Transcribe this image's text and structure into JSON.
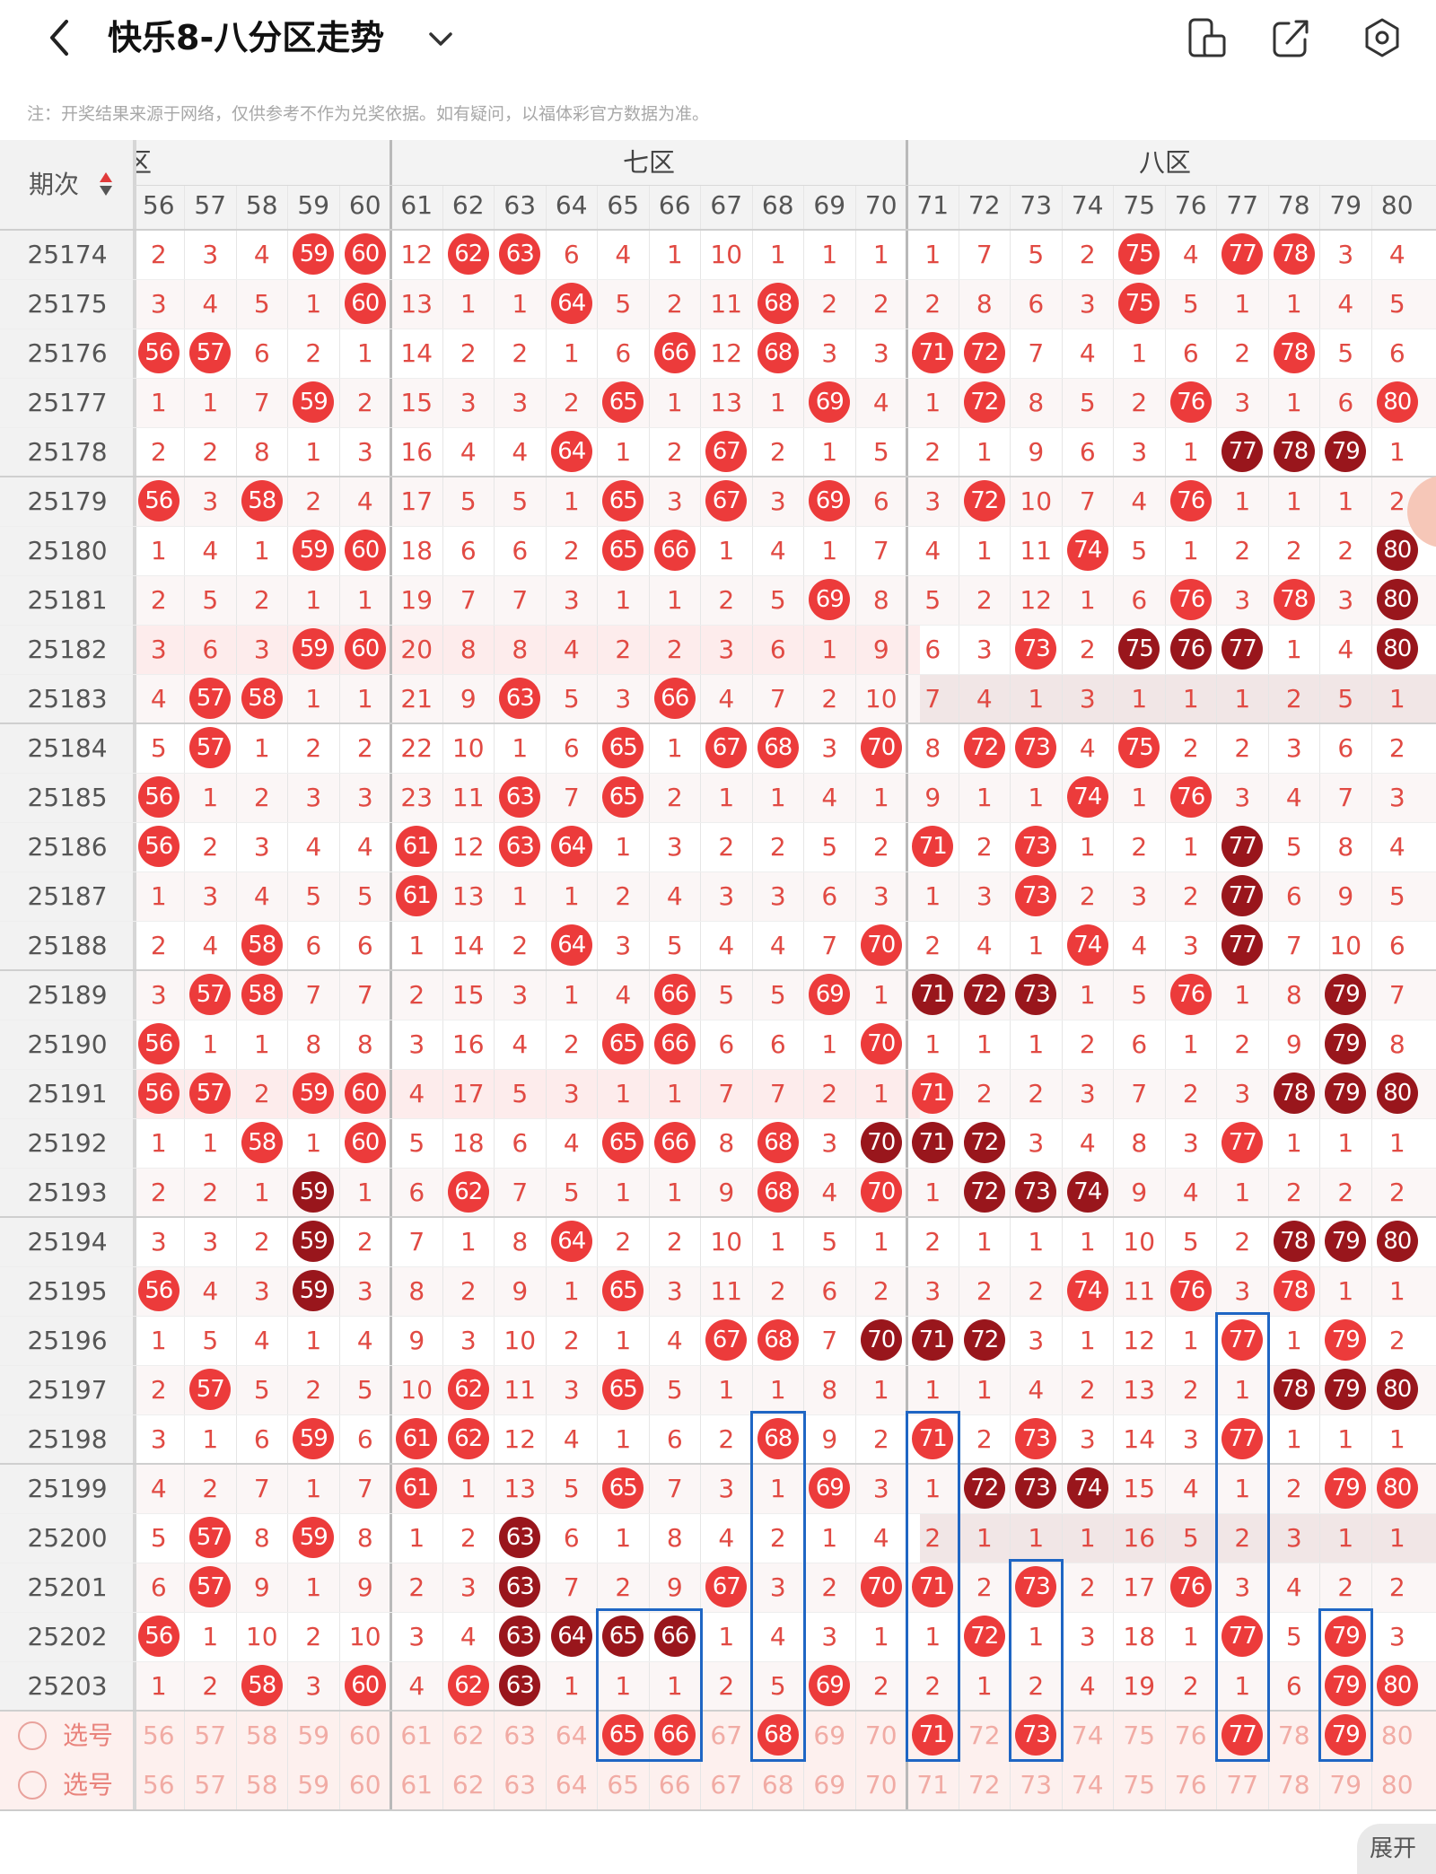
{
  "header": {
    "title": "快乐8-八分区走势",
    "back_icon": "chevron-left-icon",
    "dropdown_icon": "chevron-down-icon",
    "actions": [
      "phone-layout-icon",
      "share-icon",
      "settings-icon"
    ]
  },
  "note": "注：开奖结果来源于网络，仅供参考不作为兑奖依据。如有疑问，以福体彩官方数据为准。",
  "table": {
    "period_header": "期次",
    "zones": {
      "six": "六区",
      "seven": "七区",
      "eight": "八区"
    },
    "numbers": [
      56,
      57,
      58,
      59,
      60,
      61,
      62,
      63,
      64,
      65,
      66,
      67,
      68,
      69,
      70,
      71,
      72,
      73,
      74,
      75,
      76,
      77,
      78,
      79,
      80
    ],
    "rows": [
      {
        "period": "25174",
        "cells": [
          2,
          3,
          4,
          "59b",
          "60b",
          12,
          "62b",
          "63b",
          6,
          4,
          1,
          10,
          1,
          1,
          1,
          1,
          7,
          5,
          2,
          "75b",
          4,
          "77b",
          "78b",
          3,
          4
        ]
      },
      {
        "period": "25175",
        "cells": [
          3,
          4,
          5,
          1,
          "60b",
          13,
          1,
          1,
          "64b",
          5,
          2,
          11,
          "68b",
          2,
          2,
          2,
          8,
          6,
          3,
          "75b",
          5,
          1,
          1,
          4,
          5
        ]
      },
      {
        "period": "25176",
        "cells": [
          "56b",
          "57b",
          6,
          2,
          1,
          14,
          2,
          2,
          1,
          6,
          "66b",
          12,
          "68b",
          3,
          3,
          "71b",
          "72b",
          7,
          4,
          1,
          6,
          2,
          "78b",
          5,
          6
        ]
      },
      {
        "period": "25177",
        "cells": [
          1,
          1,
          7,
          "59b",
          2,
          15,
          3,
          3,
          2,
          "65b",
          1,
          13,
          1,
          "69b",
          4,
          1,
          "72b",
          8,
          5,
          2,
          "76b",
          3,
          1,
          6,
          "80b"
        ]
      },
      {
        "period": "25178",
        "cells": [
          2,
          2,
          8,
          1,
          3,
          16,
          4,
          4,
          "64b",
          1,
          2,
          "67b",
          2,
          1,
          5,
          2,
          1,
          9,
          6,
          3,
          1,
          "77d",
          "78d",
          "79d",
          1
        ]
      },
      {
        "period": "25179",
        "cells": [
          "56b",
          3,
          "58b",
          2,
          4,
          17,
          5,
          5,
          1,
          "65b",
          3,
          "67b",
          3,
          "69b",
          6,
          3,
          "72b",
          10,
          7,
          4,
          "76b",
          1,
          1,
          1,
          2
        ]
      },
      {
        "period": "25180",
        "cells": [
          1,
          4,
          1,
          "59b",
          "60b",
          18,
          6,
          6,
          2,
          "65b",
          "66b",
          1,
          4,
          1,
          7,
          4,
          1,
          11,
          "74b",
          5,
          1,
          2,
          2,
          2,
          "80d"
        ]
      },
      {
        "period": "25181",
        "cells": [
          2,
          5,
          2,
          1,
          1,
          19,
          7,
          7,
          3,
          1,
          1,
          2,
          5,
          "69b",
          8,
          5,
          2,
          12,
          1,
          6,
          "76b",
          3,
          "78b",
          3,
          "80d"
        ]
      },
      {
        "period": "25182",
        "cells": [
          3,
          6,
          3,
          "59b",
          "60b",
          20,
          8,
          8,
          4,
          2,
          2,
          3,
          6,
          1,
          9,
          6,
          3,
          "73b",
          2,
          "75d",
          "76d",
          "77d",
          1,
          4,
          "80d"
        ]
      },
      {
        "period": "25183",
        "cells": [
          4,
          "57b",
          "58b",
          1,
          1,
          21,
          9,
          "63b",
          5,
          3,
          "66b",
          4,
          7,
          2,
          10,
          7,
          4,
          1,
          3,
          1,
          1,
          1,
          2,
          5,
          1
        ]
      },
      {
        "period": "25184",
        "cells": [
          5,
          "57b",
          1,
          2,
          2,
          22,
          10,
          1,
          6,
          "65b",
          1,
          "67b",
          "68b",
          3,
          "70b",
          8,
          "72b",
          "73b",
          4,
          "75b",
          2,
          2,
          3,
          6,
          2
        ]
      },
      {
        "period": "25185",
        "cells": [
          "56b",
          1,
          2,
          3,
          3,
          23,
          11,
          "63b",
          7,
          "65b",
          2,
          1,
          1,
          4,
          1,
          9,
          1,
          1,
          "74b",
          1,
          "76b",
          3,
          4,
          7,
          3
        ]
      },
      {
        "period": "25186",
        "cells": [
          "56b",
          2,
          3,
          4,
          4,
          "61b",
          12,
          "63b",
          "64b",
          1,
          3,
          2,
          2,
          5,
          2,
          "71b",
          2,
          "73b",
          1,
          2,
          1,
          "77d",
          5,
          8,
          4
        ]
      },
      {
        "period": "25187",
        "cells": [
          1,
          3,
          4,
          5,
          5,
          "61b",
          13,
          1,
          1,
          2,
          4,
          3,
          3,
          6,
          3,
          1,
          3,
          "73b",
          2,
          3,
          2,
          "77d",
          6,
          9,
          5
        ]
      },
      {
        "period": "25188",
        "cells": [
          2,
          4,
          "58b",
          6,
          6,
          1,
          14,
          2,
          "64b",
          3,
          5,
          4,
          4,
          7,
          "70b",
          2,
          4,
          1,
          "74b",
          4,
          3,
          "77d",
          7,
          10,
          6
        ]
      },
      {
        "period": "25189",
        "cells": [
          3,
          "57b",
          "58b",
          7,
          7,
          2,
          15,
          3,
          1,
          4,
          "66b",
          5,
          5,
          "69b",
          1,
          "71d",
          "72d",
          "73d",
          1,
          5,
          "76b",
          1,
          8,
          "79d",
          7
        ]
      },
      {
        "period": "25190",
        "cells": [
          "56b",
          1,
          1,
          8,
          8,
          3,
          16,
          4,
          2,
          "65b",
          "66b",
          6,
          6,
          1,
          "70b",
          1,
          1,
          1,
          2,
          6,
          1,
          2,
          9,
          "79d",
          8
        ]
      },
      {
        "period": "25191",
        "cells": [
          "56b",
          "57b",
          2,
          "59b",
          "60b",
          4,
          17,
          5,
          3,
          1,
          1,
          7,
          7,
          2,
          1,
          "71b",
          2,
          2,
          3,
          7,
          2,
          3,
          "78d",
          "79d",
          "80d"
        ]
      },
      {
        "period": "25192",
        "cells": [
          1,
          1,
          "58b",
          1,
          "60b",
          5,
          18,
          6,
          4,
          "65b",
          "66b",
          8,
          "68b",
          3,
          "70d",
          "71d",
          "72d",
          3,
          4,
          8,
          3,
          "77b",
          1,
          1,
          1
        ]
      },
      {
        "period": "25193",
        "cells": [
          2,
          2,
          1,
          "59d",
          1,
          6,
          "62b",
          7,
          5,
          1,
          1,
          9,
          "68b",
          4,
          "70b",
          1,
          "72d",
          "73d",
          "74d",
          9,
          4,
          1,
          2,
          2,
          2
        ]
      },
      {
        "period": "25194",
        "cells": [
          3,
          3,
          2,
          "59d",
          2,
          7,
          1,
          8,
          "64b",
          2,
          2,
          10,
          1,
          5,
          1,
          2,
          1,
          1,
          1,
          10,
          5,
          2,
          "78d",
          "79d",
          "80d"
        ]
      },
      {
        "period": "25195",
        "cells": [
          "56b",
          4,
          3,
          "59d",
          3,
          8,
          2,
          9,
          1,
          "65b",
          3,
          11,
          2,
          6,
          2,
          3,
          2,
          2,
          "74b",
          11,
          "76b",
          3,
          "78b",
          1,
          1
        ]
      },
      {
        "period": "25196",
        "cells": [
          1,
          5,
          4,
          1,
          4,
          9,
          3,
          10,
          2,
          1,
          4,
          "67b",
          "68b",
          7,
          "70d",
          "71d",
          "72d",
          3,
          1,
          12,
          1,
          "77b",
          1,
          "79b",
          2
        ]
      },
      {
        "period": "25197",
        "cells": [
          2,
          "57b",
          5,
          2,
          5,
          10,
          "62b",
          11,
          3,
          "65b",
          5,
          1,
          1,
          8,
          1,
          1,
          1,
          4,
          2,
          13,
          2,
          1,
          "78d",
          "79d",
          "80d"
        ]
      },
      {
        "period": "25198",
        "cells": [
          3,
          1,
          6,
          "59b",
          6,
          "61b",
          "62b",
          12,
          4,
          1,
          6,
          2,
          "68b",
          9,
          2,
          "71b",
          2,
          "73b",
          3,
          14,
          3,
          "77b",
          1,
          1,
          1
        ]
      },
      {
        "period": "25199",
        "cells": [
          4,
          2,
          7,
          1,
          7,
          "61b",
          1,
          13,
          5,
          "65b",
          7,
          3,
          1,
          "69b",
          3,
          1,
          "72d",
          "73d",
          "74d",
          15,
          4,
          1,
          2,
          "79b",
          "80b"
        ]
      },
      {
        "period": "25200",
        "cells": [
          5,
          "57b",
          8,
          "59b",
          8,
          1,
          2,
          "63d",
          6,
          1,
          8,
          4,
          2,
          1,
          4,
          2,
          1,
          1,
          1,
          16,
          5,
          2,
          3,
          1,
          1
        ]
      },
      {
        "period": "25201",
        "cells": [
          6,
          "57b",
          9,
          1,
          9,
          2,
          3,
          "63d",
          7,
          2,
          9,
          "67b",
          3,
          2,
          "70b",
          "71b",
          2,
          "73b",
          2,
          17,
          "76b",
          3,
          4,
          2,
          2
        ]
      },
      {
        "period": "25202",
        "cells": [
          "56b",
          1,
          10,
          2,
          10,
          3,
          4,
          "63d",
          "64d",
          "65d",
          "66d",
          1,
          4,
          3,
          1,
          1,
          "72b",
          1,
          3,
          18,
          1,
          "77b",
          5,
          "79b",
          3
        ]
      },
      {
        "period": "25203",
        "cells": [
          1,
          2,
          "58b",
          3,
          "60b",
          4,
          "62b",
          "63d",
          1,
          1,
          1,
          2,
          5,
          "69b",
          2,
          2,
          1,
          2,
          4,
          19,
          2,
          1,
          6,
          "79b",
          "80b"
        ]
      }
    ],
    "select_label": "选号",
    "select_row1_picked": [
      65,
      66,
      68,
      71,
      73,
      77,
      79
    ]
  },
  "expand_label": "展开",
  "colors": {
    "ball_red": "#ec3b3b",
    "ball_dark": "#99161c",
    "cell_text": "#e34b42",
    "frame_blue": "#1f66c4"
  }
}
